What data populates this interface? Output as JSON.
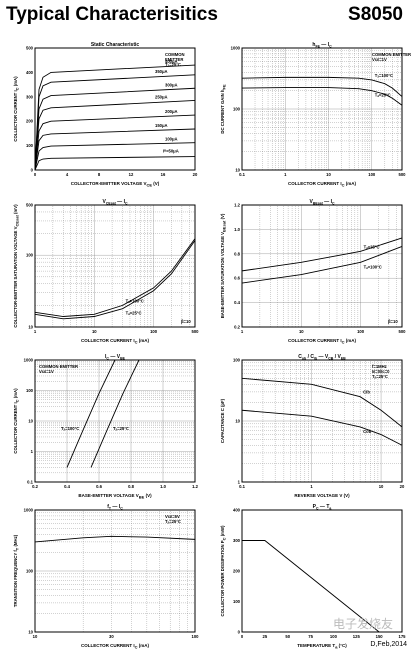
{
  "header": {
    "title": "Typical Characterisitics",
    "part": "S8050"
  },
  "footer": {
    "date": "D,Feb,2014"
  },
  "watermark": "电子发烧友",
  "chart_data": [
    {
      "type": "line",
      "title": "Static Characteristic",
      "xlabel": "COLLECTOR-EMITTER VOLTAGE",
      "xlabel_sym": "V",
      "xlabel_sub": "CE",
      "xlabel_unit": "(V)",
      "ylabel": "COLLECTOR CURRENT",
      "ylabel_sym": "I",
      "ylabel_sub": "C",
      "ylabel_unit": "(mA)",
      "xscale": "linear",
      "yscale": "linear",
      "xlim": [
        0,
        20
      ],
      "ylim": [
        0,
        500
      ],
      "xticks": [
        0,
        4,
        8,
        12,
        16,
        20
      ],
      "xtick_labels": [
        "0",
        "4",
        "8",
        "12",
        "16",
        "20"
      ],
      "yticks": [
        0,
        100,
        200,
        300,
        400,
        500
      ],
      "ytick_labels": [
        "0",
        "100",
        "200",
        "300",
        "400",
        "500"
      ],
      "grid": false,
      "annotations": [
        "COMMON",
        "EMITTER",
        "Tₐ=25°C"
      ],
      "series": [
        {
          "name": "400μA",
          "x": [
            0,
            0.5,
            1,
            2,
            20
          ],
          "y": [
            0,
            330,
            380,
            400,
            430
          ]
        },
        {
          "name": "350μA",
          "x": [
            0,
            0.5,
            1,
            2,
            20
          ],
          "y": [
            0,
            300,
            345,
            360,
            390
          ]
        },
        {
          "name": "300μA",
          "x": [
            0,
            0.5,
            1,
            2,
            20
          ],
          "y": [
            0,
            250,
            290,
            305,
            335
          ]
        },
        {
          "name": "250μA",
          "x": [
            0,
            0.5,
            1,
            2,
            20
          ],
          "y": [
            0,
            210,
            245,
            255,
            285
          ]
        },
        {
          "name": "200μA",
          "x": [
            0,
            0.5,
            1,
            2,
            20
          ],
          "y": [
            0,
            160,
            190,
            200,
            225
          ]
        },
        {
          "name": "150μA",
          "x": [
            0,
            0.5,
            1,
            2,
            20
          ],
          "y": [
            0,
            120,
            142,
            148,
            168
          ]
        },
        {
          "name": "100μA",
          "x": [
            0,
            0.5,
            1,
            2,
            20
          ],
          "y": [
            0,
            78,
            92,
            98,
            112
          ]
        },
        {
          "name": "Iᴮ=50μA",
          "x": [
            0,
            0.5,
            1,
            2,
            20
          ],
          "y": [
            0,
            38,
            45,
            48,
            55
          ]
        }
      ]
    },
    {
      "type": "line",
      "title": "h  — I",
      "title_sym1": "h",
      "title_sub1": "FE",
      "title_sym2": "I",
      "title_sub2": "C",
      "xlabel": "COLLECTOR CURRENT",
      "xlabel_sym": "I",
      "xlabel_sub": "C",
      "xlabel_unit": "(mA)",
      "ylabel": "DC CURRENT GAIN",
      "ylabel_sym": "h",
      "ylabel_sub": "FE",
      "xscale": "log",
      "yscale": "log",
      "xlim": [
        0.1,
        500
      ],
      "ylim": [
        10,
        1000
      ],
      "xticks": [
        0.1,
        1,
        10,
        100,
        500
      ],
      "xtick_labels": [
        "0.1",
        "1",
        "10",
        "100",
        "500"
      ],
      "yticks": [
        10,
        100,
        1000
      ],
      "ytick_labels": [
        "10",
        "100",
        "1000"
      ],
      "grid": true,
      "annotations": [
        "COMMON EMITTER",
        "Vᴄᴇ=1V"
      ],
      "series": [
        {
          "name": "Tₐ=100°C",
          "x": [
            0.1,
            1,
            10,
            50,
            100,
            200,
            300,
            500
          ],
          "y": [
            320,
            330,
            330,
            320,
            300,
            260,
            220,
            160
          ]
        },
        {
          "name": "Tₐ=25°C",
          "x": [
            0.1,
            1,
            10,
            50,
            100,
            200,
            300,
            500
          ],
          "y": [
            220,
            225,
            225,
            215,
            200,
            175,
            150,
            115
          ]
        }
      ]
    },
    {
      "type": "line",
      "title": "V  — I",
      "title_sym1": "V",
      "title_sub1": "CEsat",
      "title_sym2": "I",
      "title_sub2": "C",
      "xlabel": "COLLECTOR CURRENT",
      "xlabel_sym": "I",
      "xlabel_sub": "C",
      "xlabel_unit": "(mA)",
      "ylabel": "COLLECTOR-EMITTER SATURATION VOLTAGE",
      "ylabel_sym": "V",
      "ylabel_sub": "CEsat",
      "ylabel_unit": "(mV)",
      "xscale": "log",
      "yscale": "log",
      "xlim": [
        1,
        500
      ],
      "ylim": [
        10,
        500
      ],
      "xticks": [
        1,
        10,
        100,
        500
      ],
      "xtick_labels": [
        "1",
        "10",
        "100",
        "500"
      ],
      "yticks": [
        10,
        100,
        500
      ],
      "ytick_labels": [
        "10",
        "100",
        "500"
      ],
      "grid": true,
      "annotations": [
        "β=10"
      ],
      "series": [
        {
          "name": "Tₐ=100°C",
          "x": [
            1,
            3,
            10,
            30,
            100,
            200,
            500
          ],
          "y": [
            16,
            14,
            15,
            20,
            35,
            60,
            170
          ]
        },
        {
          "name": "Tₐ=25°C",
          "x": [
            1,
            3,
            10,
            30,
            100,
            200,
            500
          ],
          "y": [
            15,
            13,
            14,
            18,
            32,
            55,
            160
          ]
        }
      ]
    },
    {
      "type": "line",
      "title": "V  — I",
      "title_sym1": "V",
      "title_sub1": "BEsat",
      "title_sym2": "I",
      "title_sub2": "C",
      "xlabel": "COLLECTOR CURRENT",
      "xlabel_sym": "I",
      "xlabel_sub": "C",
      "xlabel_unit": "(mA)",
      "ylabel": "BASE-EMITTER SATURATION VOLTAGE",
      "ylabel_sym": "V",
      "ylabel_sub": "BEsat",
      "ylabel_unit": "(V)",
      "xscale": "log",
      "yscale": "linear",
      "xlim": [
        1,
        500
      ],
      "ylim": [
        0.2,
        1.2
      ],
      "xticks": [
        1,
        10,
        100,
        500
      ],
      "xtick_labels": [
        "1",
        "10",
        "100",
        "500"
      ],
      "yticks": [
        0.2,
        0.4,
        0.6,
        0.8,
        1.0,
        1.2
      ],
      "ytick_labels": [
        "0.2",
        "0.4",
        "0.6",
        "0.8",
        "1.0",
        "1.2"
      ],
      "grid": true,
      "annotations": [
        "β=10"
      ],
      "series": [
        {
          "name": "Tₐ=25°C",
          "x": [
            1,
            10,
            100,
            500
          ],
          "y": [
            0.66,
            0.73,
            0.82,
            0.93
          ]
        },
        {
          "name": "Tₐ=100°C",
          "x": [
            1,
            10,
            100,
            500
          ],
          "y": [
            0.56,
            0.63,
            0.73,
            0.86
          ]
        }
      ]
    },
    {
      "type": "line",
      "title": "I  — V",
      "title_sym1": "I",
      "title_sub1": "C",
      "title_sym2": "V",
      "title_sub2": "BE",
      "xlabel": "BASE-EMITTER VOLTAGE",
      "xlabel_sym": "V",
      "xlabel_sub": "BE",
      "xlabel_unit": "(V)",
      "ylabel": "COLLECTOR CURRENT",
      "ylabel_sym": "I",
      "ylabel_sub": "C",
      "ylabel_unit": "(mA)",
      "xscale": "linear",
      "yscale": "log",
      "xlim": [
        0.2,
        1.2
      ],
      "ylim": [
        0.1,
        1000
      ],
      "xticks": [
        0.2,
        0.4,
        0.6,
        0.8,
        1.0,
        1.2
      ],
      "xtick_labels": [
        "0.2",
        "0.4",
        "0.6",
        "0.8",
        "1.0",
        "1.2"
      ],
      "yticks": [
        0.1,
        1,
        10,
        100,
        1000
      ],
      "ytick_labels": [
        "0.1",
        "1",
        "10",
        "100",
        "1000"
      ],
      "grid": true,
      "annotations": [
        "COMMON EMITTER",
        "Vᴄᴇ=1V"
      ],
      "series": [
        {
          "name": "Tₐ=100°C",
          "x": [
            0.4,
            0.5,
            0.6,
            0.7
          ],
          "y": [
            0.3,
            5,
            80,
            1000
          ]
        },
        {
          "name": "Tₐ=25°C",
          "x": [
            0.55,
            0.65,
            0.75,
            0.85
          ],
          "y": [
            0.3,
            5,
            80,
            1000
          ]
        }
      ]
    },
    {
      "type": "line",
      "title": "C  / C  — V  / V",
      "title_sym1": "C",
      "title_sub1": "ob",
      "title_sym2": "C",
      "title_sub2": "ib",
      "title_sym3": "V",
      "title_sub3": "CB",
      "title_sym4": "V",
      "title_sub4": "EB",
      "xlabel": "REVERSE VOLTAGE",
      "xlabel_sym": "V",
      "xlabel_unit": "(V)",
      "ylabel": "CAPACITANCE",
      "ylabel_sym": "C",
      "ylabel_unit": "(pF)",
      "xscale": "log",
      "yscale": "log",
      "xlim": [
        0.1,
        20
      ],
      "ylim": [
        1,
        100
      ],
      "xticks": [
        0.1,
        1,
        10,
        20
      ],
      "xtick_labels": [
        "0.1",
        "1",
        "10",
        "20"
      ],
      "yticks": [
        1,
        10,
        100
      ],
      "ytick_labels": [
        "1",
        "10",
        "100"
      ],
      "grid": true,
      "annotations": [
        "f=1MHz",
        "Iᴇ=0/Iᴄ=0",
        "Tₐ=25°C"
      ],
      "series": [
        {
          "name": "Cib",
          "x": [
            0.1,
            1,
            5,
            10,
            20
          ],
          "y": [
            50,
            40,
            25,
            15,
            8
          ]
        },
        {
          "name": "Cob",
          "x": [
            0.1,
            1,
            5,
            10,
            20
          ],
          "y": [
            15,
            12,
            8,
            6,
            4
          ]
        }
      ]
    },
    {
      "type": "line",
      "title": "f  — I",
      "title_sym1": "f",
      "title_sub1": "T",
      "title_sym2": "I",
      "title_sub2": "C",
      "xlabel": "COLLECTOR CURRENT",
      "xlabel_sym": "I",
      "xlabel_sub": "C",
      "xlabel_unit": "(mA)",
      "ylabel": "TRANSITION FREQUENCY",
      "ylabel_sym": "f",
      "ylabel_sub": "T",
      "ylabel_unit": "(MHz)",
      "xscale": "log",
      "yscale": "log",
      "xlim": [
        10,
        100
      ],
      "ylim": [
        10,
        1000
      ],
      "xticks": [
        10,
        30,
        100
      ],
      "xtick_labels": [
        "10",
        "30",
        "100"
      ],
      "yticks": [
        10,
        100,
        1000
      ],
      "ytick_labels": [
        "10",
        "100",
        "1000"
      ],
      "grid": true,
      "annotations": [
        "Vᴄᴇ=6V",
        "Tₐ=25°C"
      ],
      "series": [
        {
          "name": "fT",
          "x": [
            10,
            20,
            30,
            50,
            100
          ],
          "y": [
            300,
            350,
            370,
            360,
            330
          ]
        }
      ]
    },
    {
      "type": "line",
      "title": "P  — T",
      "title_sym1": "P",
      "title_sub1": "C",
      "title_sym2": "T",
      "title_sub2": "a",
      "xlabel": "TEMPERATURE",
      "xlabel_sym": "T",
      "xlabel_sub": "a",
      "xlabel_unit": "(°C)",
      "ylabel": "COLLECTOR POWER DISSIPATION",
      "ylabel_sym": "P",
      "ylabel_sub": "C",
      "ylabel_unit": "(mW)",
      "xscale": "linear",
      "yscale": "linear",
      "xlim": [
        0,
        175
      ],
      "ylim": [
        0,
        400
      ],
      "xticks": [
        0,
        25,
        50,
        75,
        100,
        125,
        150,
        175
      ],
      "xtick_labels": [
        "0",
        "25",
        "50",
        "75",
        "100",
        "125",
        "150",
        "175"
      ],
      "yticks": [
        0,
        100,
        200,
        300,
        400
      ],
      "ytick_labels": [
        "0",
        "100",
        "200",
        "300",
        "400"
      ],
      "grid": false,
      "series": [
        {
          "name": "Pc",
          "x": [
            0,
            25,
            150
          ],
          "y": [
            300,
            300,
            0
          ]
        }
      ]
    }
  ]
}
